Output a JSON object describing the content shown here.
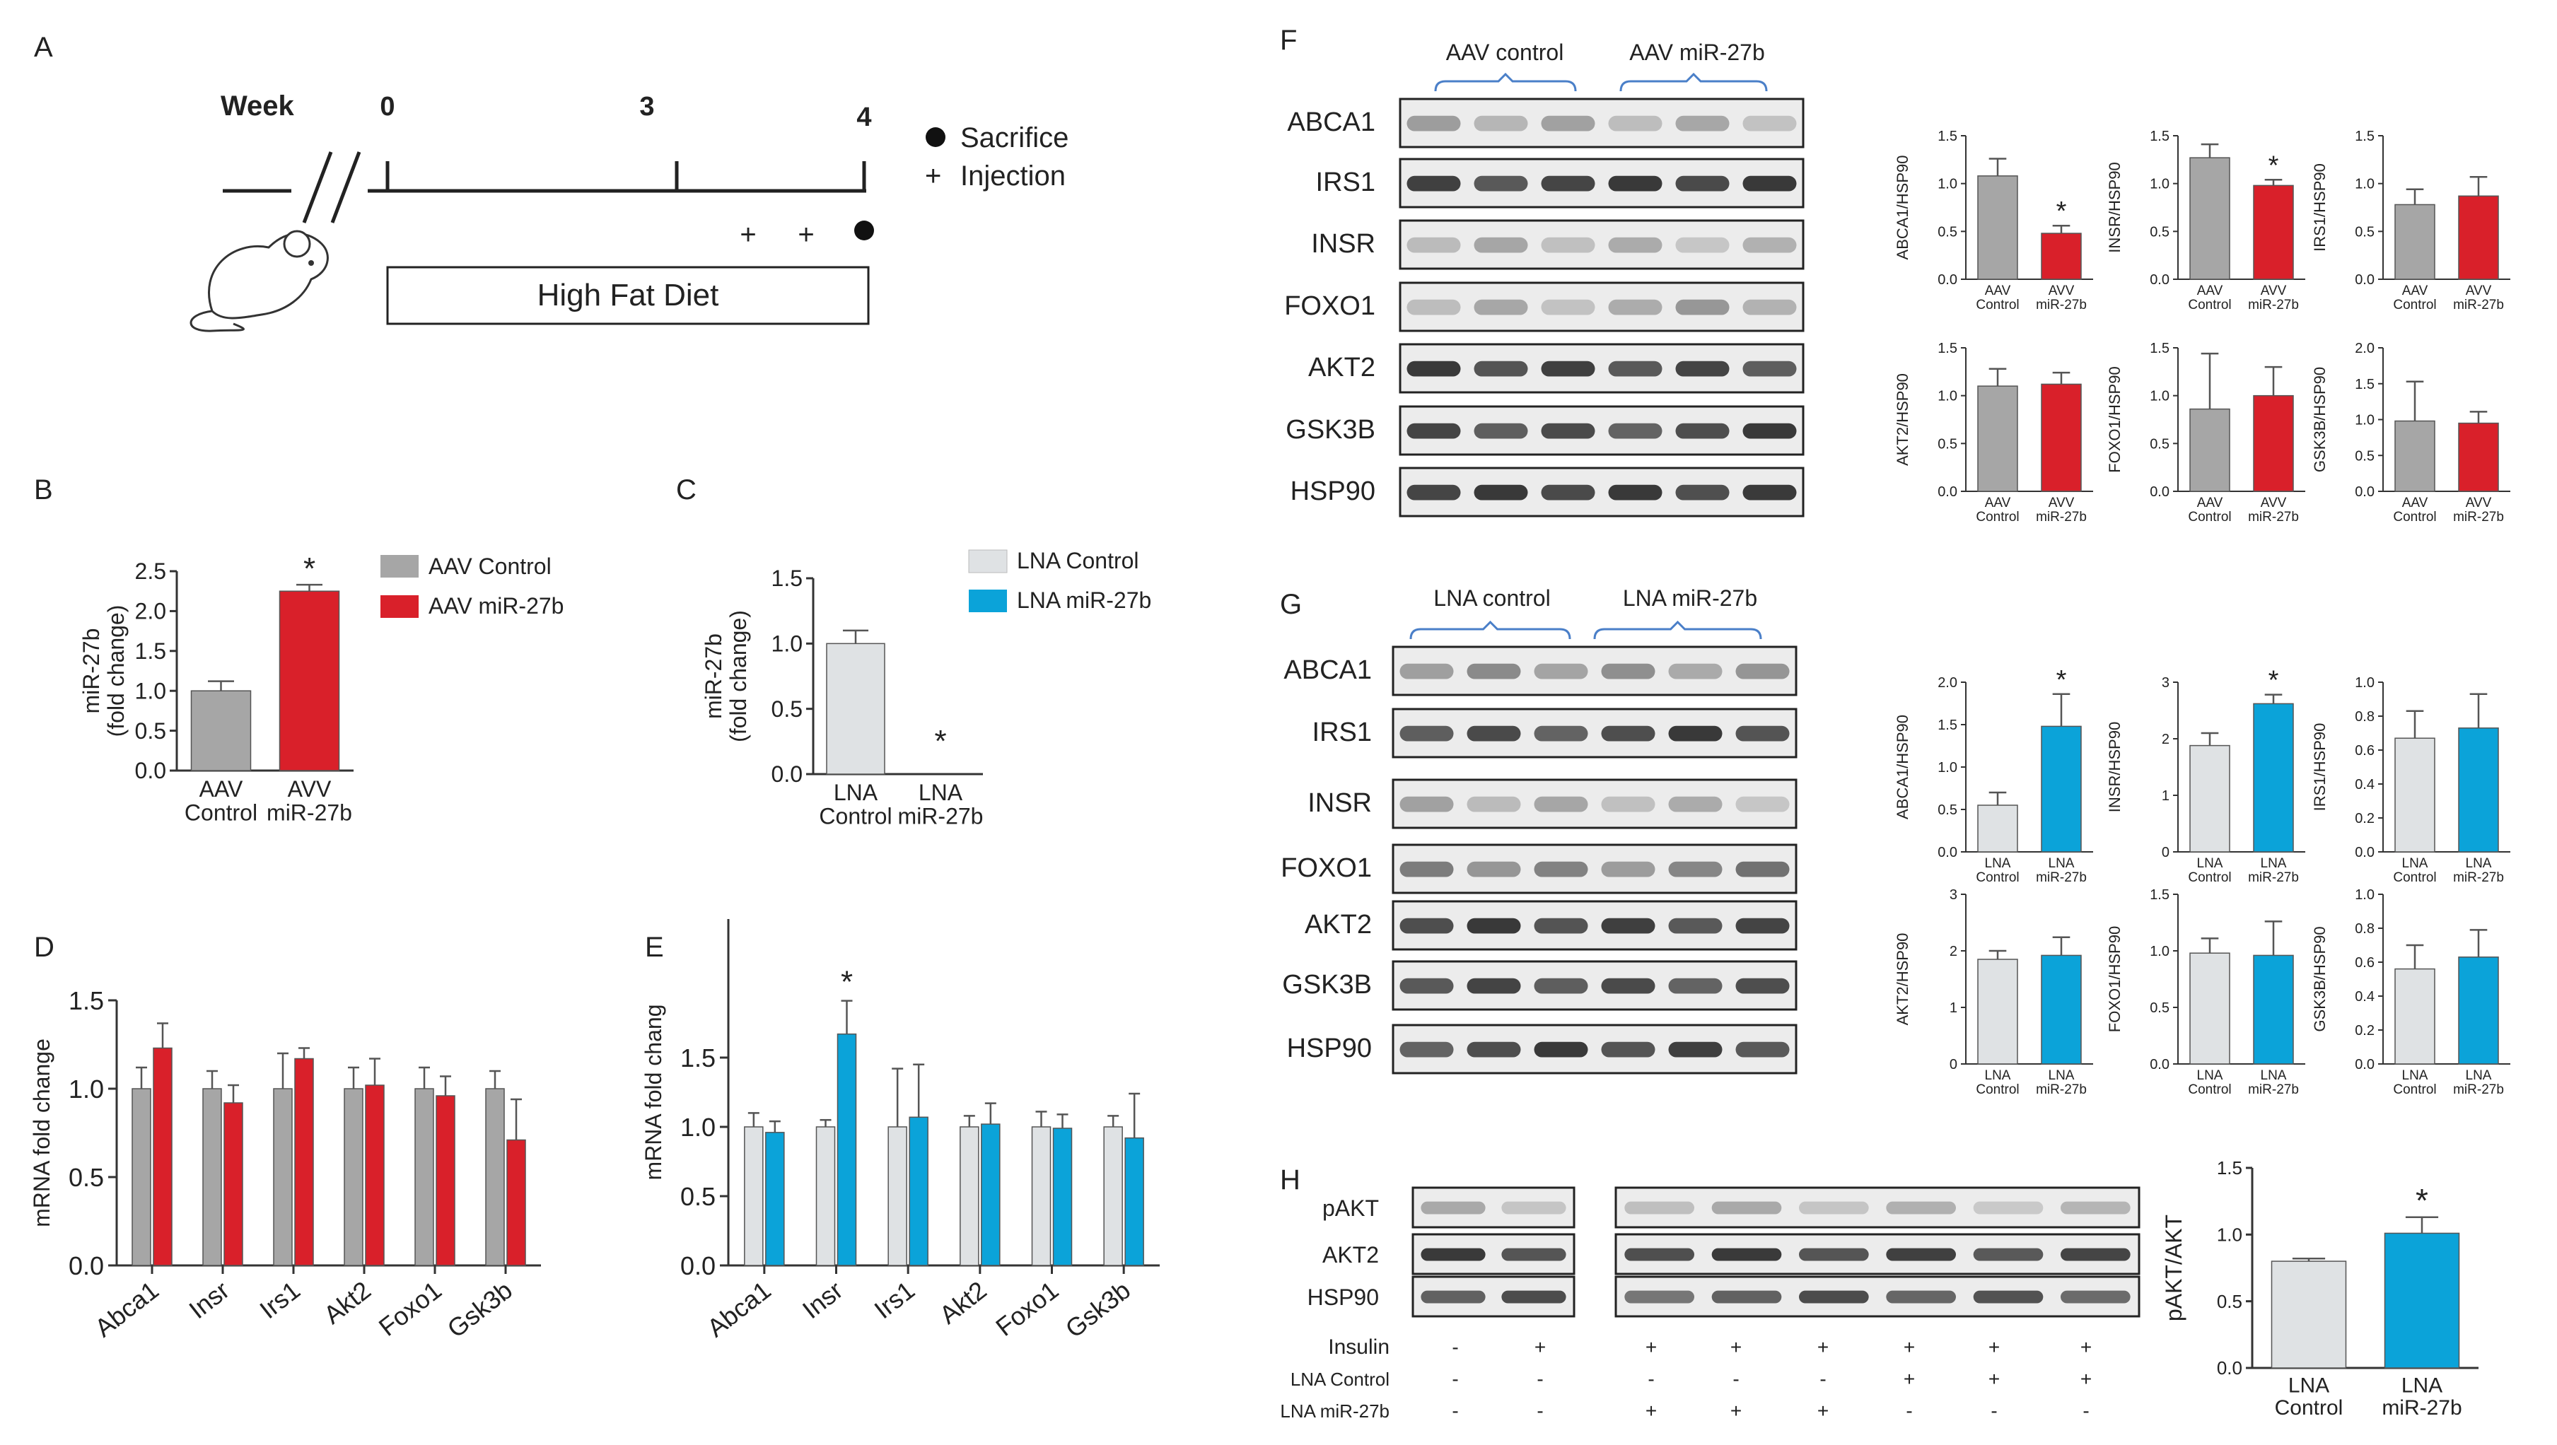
{
  "colors": {
    "aav_control": "#a6a6a6",
    "aav_mir27b": "#d9202a",
    "lna_control": "#dfe2e4",
    "lna_mir27b": "#0ba3d9",
    "bar_edge": "#555555",
    "axis": "#333333",
    "bracket": "#4a7fc8",
    "blot_bg": "#ececec",
    "band": "#2f2f2f"
  },
  "panels": {
    "A": {
      "label": "A",
      "week_label": "Week",
      "ticks": [
        "0",
        "3",
        "4"
      ],
      "legend": [
        {
          "marker": "●",
          "text": "Sacrifice"
        },
        {
          "marker": "+",
          "text": "Injection"
        }
      ],
      "diet_label": "High Fat Diet",
      "injection_marks": [
        "+",
        "+"
      ],
      "icons": [
        "mouse-icon",
        "timeline-break-icon"
      ]
    },
    "B": {
      "label": "B"
    },
    "C": {
      "label": "C"
    },
    "D": {
      "label": "D"
    },
    "E": {
      "label": "E"
    },
    "F": {
      "label": "F",
      "groups": [
        "AAV control",
        "AAV miR-27b"
      ],
      "proteins": [
        "ABCA1",
        "IRS1",
        "INSR",
        "FOXO1",
        "AKT2",
        "GSK3B",
        "HSP90"
      ]
    },
    "G": {
      "label": "G",
      "groups": [
        "LNA control",
        "LNA miR-27b"
      ],
      "proteins": [
        "ABCA1",
        "IRS1",
        "INSR",
        "FOXO1",
        "AKT2",
        "GSK3B",
        "HSP90"
      ]
    },
    "H": {
      "label": "H",
      "proteins": [
        "pAKT",
        "AKT2",
        "HSP90"
      ],
      "condition_rows": [
        {
          "label": "Insulin",
          "values": [
            "-",
            "+",
            "+",
            "+",
            "+",
            "+",
            "+",
            "+"
          ]
        },
        {
          "label": "LNA Control",
          "values": [
            "-",
            "-",
            "-",
            "-",
            "-",
            "+",
            "+",
            "+"
          ]
        },
        {
          "label": "LNA miR-27b",
          "values": [
            "-",
            "-",
            "+",
            "+",
            "+",
            "-",
            "-",
            "-"
          ]
        }
      ]
    }
  },
  "chart_data": [
    {
      "id": "B",
      "type": "bar",
      "categories": [
        "AAV\nControl",
        "AVV\nmiR-27b"
      ],
      "values": [
        1.0,
        2.25
      ],
      "errors": [
        0.12,
        0.08
      ],
      "ylabel": "miR-27b\n(fold change)",
      "ylim": [
        0,
        2.5
      ],
      "yticks": [
        "0.0",
        "0.5",
        "1.0",
        "1.5",
        "2.0",
        "2.5"
      ],
      "legend": [
        "AAV Control",
        "AAV miR-27b"
      ],
      "annotations": [
        "",
        "*"
      ]
    },
    {
      "id": "C",
      "type": "bar",
      "categories": [
        "LNA\nControl",
        "LNA\nmiR-27b"
      ],
      "values": [
        1.0,
        0.0
      ],
      "errors": [
        0.1,
        0
      ],
      "ylabel": "miR-27b\n(fold change)",
      "ylim": [
        0,
        1.5
      ],
      "yticks": [
        "0.0",
        "0.5",
        "1.0",
        "1.5"
      ],
      "legend": [
        "LNA Control",
        "LNA miR-27b"
      ],
      "annotations": [
        "",
        "*"
      ]
    },
    {
      "id": "D",
      "type": "bar",
      "categories": [
        "Abca1",
        "Insr",
        "Irs1",
        "Akt2",
        "Foxo1",
        "Gsk3b"
      ],
      "series": [
        {
          "name": "AAV Control",
          "values": [
            1.0,
            1.0,
            1.0,
            1.0,
            1.0,
            1.0
          ],
          "errors": [
            0.12,
            0.1,
            0.2,
            0.12,
            0.12,
            0.1
          ]
        },
        {
          "name": "AAV miR-27b",
          "values": [
            1.23,
            0.92,
            1.17,
            1.02,
            0.96,
            0.71
          ],
          "errors": [
            0.14,
            0.1,
            0.06,
            0.15,
            0.11,
            0.23
          ]
        }
      ],
      "ylabel": "mRNA fold change",
      "ylim": [
        0,
        1.5
      ],
      "yticks": [
        "0.0",
        "0.5",
        "1.0",
        "1.5"
      ],
      "annotations": []
    },
    {
      "id": "E",
      "type": "bar",
      "categories": [
        "Abca1",
        "Insr",
        "Irs1",
        "Akt2",
        "Foxo1",
        "Gsk3b"
      ],
      "series": [
        {
          "name": "LNA Control",
          "values": [
            1.0,
            1.0,
            1.0,
            1.0,
            1.0,
            1.0
          ],
          "errors": [
            0.1,
            0.05,
            0.42,
            0.08,
            0.11,
            0.08
          ]
        },
        {
          "name": "LNA miR-27b",
          "values": [
            0.96,
            1.67,
            1.07,
            1.02,
            0.99,
            0.92
          ],
          "errors": [
            0.08,
            0.24,
            0.38,
            0.15,
            0.1,
            0.32
          ]
        }
      ],
      "ylabel": "mRNA fold chang",
      "ylim": [
        0,
        2.5
      ],
      "yticks": [
        "0.0",
        "0.5",
        "1.0",
        "1.5"
      ],
      "annotations": [
        {
          "category": "Insr",
          "text": "*"
        }
      ]
    },
    {
      "id": "F1",
      "type": "bar",
      "categories": [
        "AAV\nControl",
        "AVV\nmiR-27b"
      ],
      "values": [
        1.08,
        0.48
      ],
      "errors": [
        0.18,
        0.08
      ],
      "ylabel": "ABCA1/HSP90",
      "ylim": [
        0,
        1.5
      ],
      "yticks": [
        "0.0",
        "0.5",
        "1.0",
        "1.5"
      ],
      "annotations": [
        "",
        "*"
      ]
    },
    {
      "id": "F2",
      "type": "bar",
      "categories": [
        "AAV\nControl",
        "AVV\nmiR-27b"
      ],
      "values": [
        1.27,
        0.98
      ],
      "errors": [
        0.14,
        0.06
      ],
      "ylabel": "INSR/HSP90",
      "ylim": [
        0,
        1.5
      ],
      "yticks": [
        "0.0",
        "0.5",
        "1.0",
        "1.5"
      ],
      "annotations": [
        "",
        "*"
      ]
    },
    {
      "id": "F3",
      "type": "bar",
      "categories": [
        "AAV\nControl",
        "AVV\nmiR-27b"
      ],
      "values": [
        0.78,
        0.87
      ],
      "errors": [
        0.16,
        0.2
      ],
      "ylabel": "IRS1/HSP90",
      "ylim": [
        0,
        1.5
      ],
      "yticks": [
        "0.0",
        "0.5",
        "1.0",
        "1.5"
      ],
      "annotations": [
        "",
        ""
      ]
    },
    {
      "id": "F4",
      "type": "bar",
      "categories": [
        "AAV\nControl",
        "AVV\nmiR-27b"
      ],
      "values": [
        1.1,
        1.12
      ],
      "errors": [
        0.18,
        0.12
      ],
      "ylabel": "AKT2/HSP90",
      "ylim": [
        0,
        1.5
      ],
      "yticks": [
        "0.0",
        "0.5",
        "1.0",
        "1.5"
      ],
      "annotations": [
        "",
        ""
      ]
    },
    {
      "id": "F5",
      "type": "bar",
      "categories": [
        "AAV\nControl",
        "AVV\nmiR-27b"
      ],
      "values": [
        0.86,
        1.0
      ],
      "errors": [
        0.58,
        0.3
      ],
      "ylabel": "FOXO1/HSP90",
      "ylim": [
        0,
        1.5
      ],
      "yticks": [
        "0.0",
        "0.5",
        "1.0",
        "1.5"
      ],
      "annotations": [
        "",
        ""
      ]
    },
    {
      "id": "F6",
      "type": "bar",
      "categories": [
        "AAV\nControl",
        "AVV\nmiR-27b"
      ],
      "values": [
        0.98,
        0.95
      ],
      "errors": [
        0.55,
        0.16
      ],
      "ylabel": "GSK3B/HSP90",
      "ylim": [
        0,
        2.0
      ],
      "yticks": [
        "0.0",
        "0.5",
        "1.0",
        "1.5",
        "2.0"
      ],
      "annotations": [
        "",
        ""
      ]
    },
    {
      "id": "G1",
      "type": "bar",
      "categories": [
        "LNA\nControl",
        "LNA\nmiR-27b"
      ],
      "values": [
        0.55,
        1.48
      ],
      "errors": [
        0.15,
        0.38
      ],
      "ylabel": "ABCA1/HSP90",
      "ylim": [
        0,
        2.0
      ],
      "yticks": [
        "0.0",
        "0.5",
        "1.0",
        "1.5",
        "2.0"
      ],
      "annotations": [
        "",
        "*"
      ]
    },
    {
      "id": "G2",
      "type": "bar",
      "categories": [
        "LNA\nControl",
        "LNA\nmiR-27b"
      ],
      "values": [
        1.88,
        2.62
      ],
      "errors": [
        0.22,
        0.16
      ],
      "ylabel": "INSR/HSP90",
      "ylim": [
        0,
        3.0
      ],
      "yticks": [
        "0",
        "1",
        "2",
        "3"
      ],
      "annotations": [
        "",
        "*"
      ]
    },
    {
      "id": "G3",
      "type": "bar",
      "categories": [
        "LNA\nControl",
        "LNA\nmiR-27b"
      ],
      "values": [
        0.67,
        0.73
      ],
      "errors": [
        0.16,
        0.2
      ],
      "ylabel": "IRS1/HSP90",
      "ylim": [
        0,
        1.0
      ],
      "yticks": [
        "0.0",
        "0.2",
        "0.4",
        "0.6",
        "0.8",
        "1.0"
      ],
      "annotations": [
        "",
        ""
      ]
    },
    {
      "id": "G4",
      "type": "bar",
      "categories": [
        "LNA\nControl",
        "LNA\nmiR-27b"
      ],
      "values": [
        1.85,
        1.92
      ],
      "errors": [
        0.15,
        0.32
      ],
      "ylabel": "AKT2/HSP90",
      "ylim": [
        0,
        3.0
      ],
      "yticks": [
        "0",
        "1",
        "2",
        "3"
      ],
      "annotations": [
        "",
        ""
      ]
    },
    {
      "id": "G5",
      "type": "bar",
      "categories": [
        "LNA\nControl",
        "LNA\nmiR-27b"
      ],
      "values": [
        0.98,
        0.96
      ],
      "errors": [
        0.13,
        0.3
      ],
      "ylabel": "FOXO1/HSP90",
      "ylim": [
        0,
        1.5
      ],
      "yticks": [
        "0.0",
        "0.5",
        "1.0",
        "1.5"
      ],
      "annotations": [
        "",
        ""
      ]
    },
    {
      "id": "G6",
      "type": "bar",
      "categories": [
        "LNA\nControl",
        "LNA\nmiR-27b"
      ],
      "values": [
        0.56,
        0.63
      ],
      "errors": [
        0.14,
        0.16
      ],
      "ylabel": "GSK3B/HSP90",
      "ylim": [
        0,
        1.0
      ],
      "yticks": [
        "0.0",
        "0.2",
        "0.4",
        "0.6",
        "0.8",
        "1.0"
      ],
      "annotations": [
        "",
        ""
      ]
    },
    {
      "id": "H1",
      "type": "bar",
      "categories": [
        "LNA\nControl",
        "LNA\nmiR-27b"
      ],
      "values": [
        0.8,
        1.01
      ],
      "errors": [
        0.02,
        0.12
      ],
      "ylabel": "pAKT/AKT",
      "ylim": [
        0,
        1.5
      ],
      "yticks": [
        "0.0",
        "0.5",
        "1.0",
        "1.5"
      ],
      "annotations": [
        "",
        "*"
      ]
    }
  ]
}
